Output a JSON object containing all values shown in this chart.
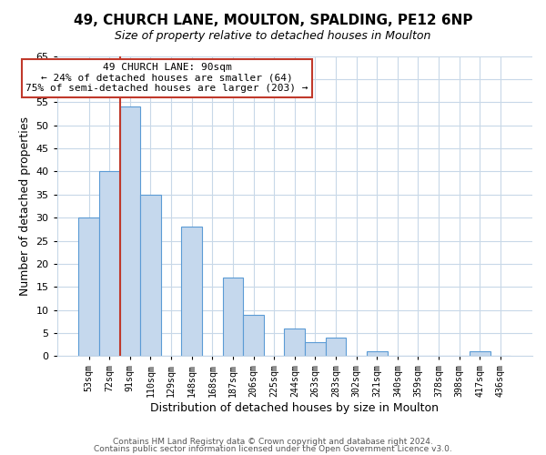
{
  "title": "49, CHURCH LANE, MOULTON, SPALDING, PE12 6NP",
  "subtitle": "Size of property relative to detached houses in Moulton",
  "xlabel": "Distribution of detached houses by size in Moulton",
  "ylabel": "Number of detached properties",
  "bin_labels": [
    "53sqm",
    "72sqm",
    "91sqm",
    "110sqm",
    "129sqm",
    "148sqm",
    "168sqm",
    "187sqm",
    "206sqm",
    "225sqm",
    "244sqm",
    "263sqm",
    "283sqm",
    "302sqm",
    "321sqm",
    "340sqm",
    "359sqm",
    "378sqm",
    "398sqm",
    "417sqm",
    "436sqm"
  ],
  "bar_values": [
    30,
    40,
    54,
    35,
    0,
    28,
    0,
    17,
    9,
    0,
    6,
    3,
    4,
    0,
    1,
    0,
    0,
    0,
    0,
    1,
    0
  ],
  "bar_color": "#c5d8ed",
  "bar_edge_color": "#5b9bd5",
  "vline_color": "#c0392b",
  "vline_x_data": 2,
  "ylim": [
    0,
    65
  ],
  "yticks": [
    0,
    5,
    10,
    15,
    20,
    25,
    30,
    35,
    40,
    45,
    50,
    55,
    60,
    65
  ],
  "annotation_box_text": "49 CHURCH LANE: 90sqm\n← 24% of detached houses are smaller (64)\n75% of semi-detached houses are larger (203) →",
  "annotation_box_color": "#c0392b",
  "footnote1": "Contains HM Land Registry data © Crown copyright and database right 2024.",
  "footnote2": "Contains public sector information licensed under the Open Government Licence v3.0.",
  "background_color": "#ffffff",
  "grid_color": "#c8d8e8"
}
